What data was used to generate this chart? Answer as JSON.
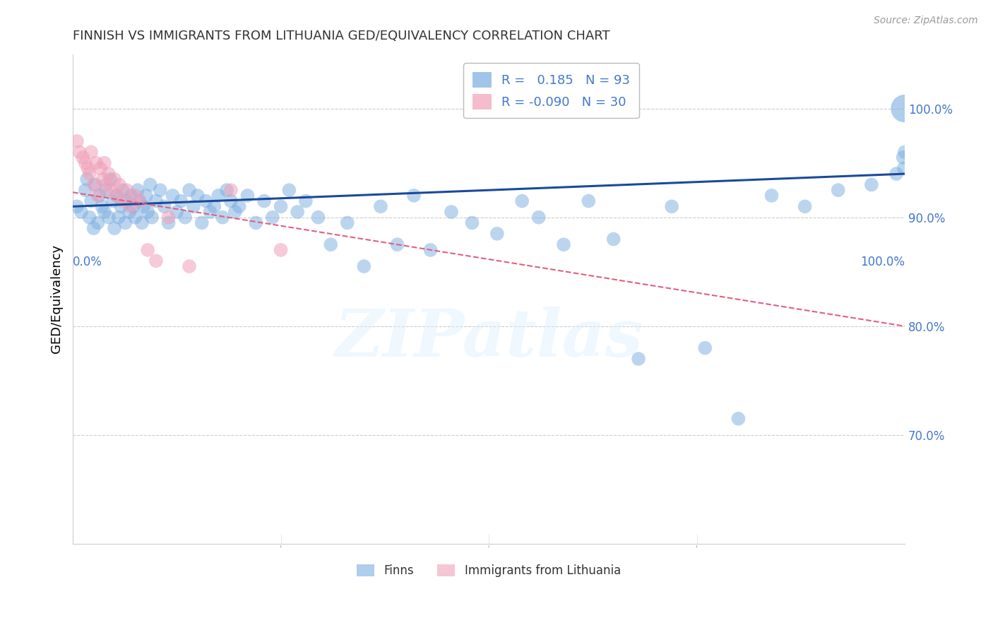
{
  "title": "FINNISH VS IMMIGRANTS FROM LITHUANIA GED/EQUIVALENCY CORRELATION CHART",
  "source": "Source: ZipAtlas.com",
  "ylabel": "GED/Equivalency",
  "legend_label1": "Finns",
  "legend_label2": "Immigrants from Lithuania",
  "R_finns": 0.185,
  "N_finns": 93,
  "R_lith": -0.09,
  "N_lith": 30,
  "xlim": [
    0.0,
    1.0
  ],
  "ylim": [
    0.6,
    1.05
  ],
  "yticks_right": [
    0.7,
    0.8,
    0.9,
    1.0
  ],
  "ytick_labels_right": [
    "70.0%",
    "80.0%",
    "90.0%",
    "100.0%"
  ],
  "grid_color": "#cccccc",
  "background_color": "#ffffff",
  "finns_color": "#7aade0",
  "lith_color": "#f0a0b8",
  "finns_line_color": "#1a4a9a",
  "lith_line_color": "#e06080",
  "title_color": "#333333",
  "axis_tick_color": "#4477cc",
  "finns_line_start_y": 0.91,
  "finns_line_end_y": 0.94,
  "lith_line_start_y": 0.923,
  "lith_line_end_y": 0.8,
  "finns_x": [
    0.005,
    0.01,
    0.015,
    0.017,
    0.02,
    0.022,
    0.025,
    0.027,
    0.03,
    0.032,
    0.035,
    0.038,
    0.04,
    0.043,
    0.045,
    0.048,
    0.05,
    0.053,
    0.055,
    0.058,
    0.06,
    0.063,
    0.065,
    0.068,
    0.07,
    0.073,
    0.075,
    0.078,
    0.08,
    0.083,
    0.085,
    0.088,
    0.09,
    0.093,
    0.095,
    0.1,
    0.105,
    0.11,
    0.115,
    0.12,
    0.125,
    0.13,
    0.135,
    0.14,
    0.145,
    0.15,
    0.155,
    0.16,
    0.165,
    0.17,
    0.175,
    0.18,
    0.185,
    0.19,
    0.195,
    0.2,
    0.21,
    0.22,
    0.23,
    0.24,
    0.25,
    0.26,
    0.27,
    0.28,
    0.295,
    0.31,
    0.33,
    0.35,
    0.37,
    0.39,
    0.41,
    0.43,
    0.455,
    0.48,
    0.51,
    0.54,
    0.56,
    0.59,
    0.62,
    0.65,
    0.68,
    0.72,
    0.76,
    0.8,
    0.84,
    0.88,
    0.92,
    0.96,
    0.99,
    0.998,
    0.999,
    1.0,
    1.0
  ],
  "finns_y": [
    0.91,
    0.905,
    0.925,
    0.935,
    0.9,
    0.915,
    0.89,
    0.93,
    0.895,
    0.92,
    0.91,
    0.905,
    0.925,
    0.9,
    0.935,
    0.915,
    0.89,
    0.92,
    0.9,
    0.91,
    0.925,
    0.895,
    0.915,
    0.905,
    0.92,
    0.91,
    0.9,
    0.925,
    0.915,
    0.895,
    0.91,
    0.92,
    0.905,
    0.93,
    0.9,
    0.915,
    0.925,
    0.91,
    0.895,
    0.92,
    0.905,
    0.915,
    0.9,
    0.925,
    0.91,
    0.92,
    0.895,
    0.915,
    0.905,
    0.91,
    0.92,
    0.9,
    0.925,
    0.915,
    0.905,
    0.91,
    0.92,
    0.895,
    0.915,
    0.9,
    0.91,
    0.925,
    0.905,
    0.915,
    0.9,
    0.875,
    0.895,
    0.855,
    0.91,
    0.875,
    0.92,
    0.87,
    0.905,
    0.895,
    0.885,
    0.915,
    0.9,
    0.875,
    0.915,
    0.88,
    0.77,
    0.91,
    0.78,
    0.715,
    0.92,
    0.91,
    0.925,
    0.93,
    0.94,
    0.955,
    0.945,
    0.96,
    1.0
  ],
  "finns_sizes": [
    200,
    200,
    200,
    200,
    200,
    200,
    200,
    200,
    200,
    200,
    200,
    200,
    200,
    200,
    200,
    200,
    200,
    200,
    200,
    200,
    200,
    200,
    200,
    200,
    200,
    200,
    200,
    200,
    200,
    200,
    200,
    200,
    200,
    200,
    200,
    200,
    200,
    200,
    200,
    200,
    200,
    200,
    200,
    200,
    200,
    200,
    200,
    200,
    200,
    200,
    200,
    200,
    200,
    200,
    200,
    200,
    200,
    200,
    200,
    200,
    200,
    200,
    200,
    200,
    200,
    200,
    200,
    200,
    200,
    200,
    200,
    200,
    200,
    200,
    200,
    200,
    200,
    200,
    200,
    200,
    200,
    200,
    200,
    200,
    200,
    200,
    200,
    200,
    200,
    200,
    200,
    200,
    800
  ],
  "lith_x": [
    0.005,
    0.008,
    0.012,
    0.015,
    0.018,
    0.02,
    0.022,
    0.025,
    0.028,
    0.03,
    0.033,
    0.036,
    0.038,
    0.04,
    0.043,
    0.046,
    0.05,
    0.053,
    0.056,
    0.06,
    0.065,
    0.07,
    0.075,
    0.08,
    0.09,
    0.1,
    0.115,
    0.14,
    0.19,
    0.25
  ],
  "lith_y": [
    0.97,
    0.96,
    0.955,
    0.95,
    0.945,
    0.94,
    0.96,
    0.93,
    0.95,
    0.92,
    0.945,
    0.935,
    0.95,
    0.93,
    0.94,
    0.925,
    0.935,
    0.92,
    0.93,
    0.915,
    0.925,
    0.91,
    0.92,
    0.915,
    0.87,
    0.86,
    0.9,
    0.855,
    0.925,
    0.87
  ]
}
